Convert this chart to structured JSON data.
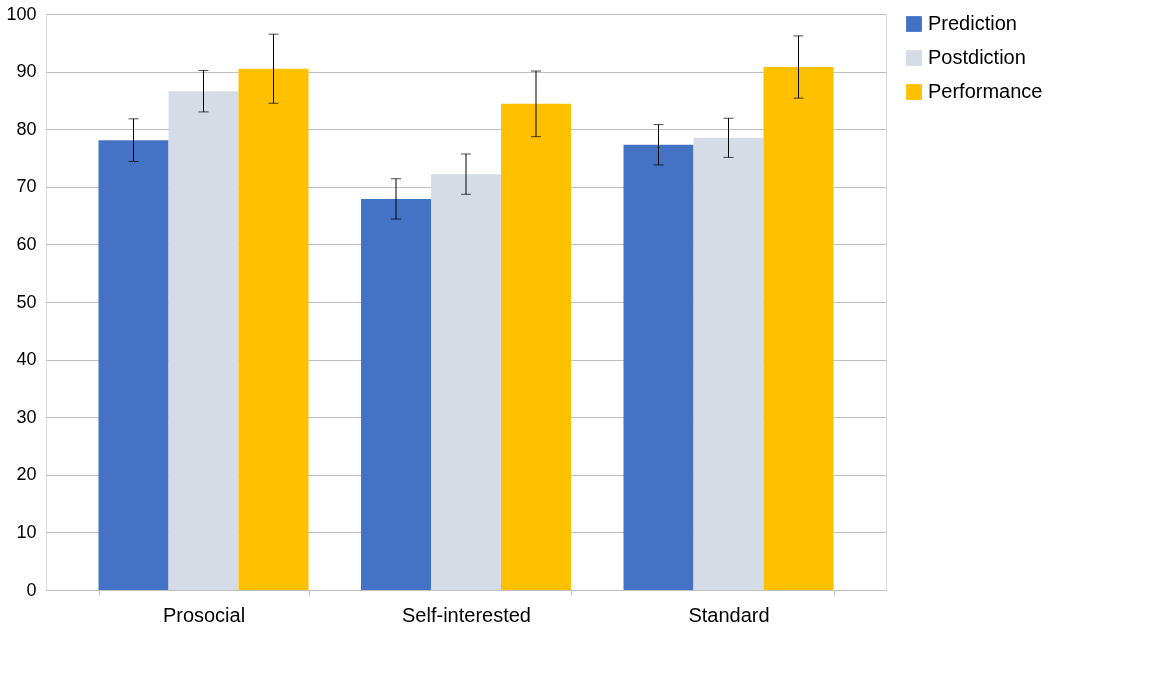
{
  "chart_data": {
    "type": "bar",
    "categories": [
      "Prosocial",
      "Self-interested",
      "Standard"
    ],
    "series": [
      {
        "name": "Prediction",
        "color": "#4472c4",
        "values": [
          78.1,
          67.9,
          77.3
        ],
        "errors": [
          3.7,
          3.5,
          3.5
        ]
      },
      {
        "name": "Postdiction",
        "color": "#d6dce5",
        "values": [
          86.6,
          72.2,
          78.5
        ],
        "errors": [
          3.6,
          3.5,
          3.4
        ]
      },
      {
        "name": "Performance",
        "color": "#ffc000",
        "values": [
          90.5,
          84.4,
          90.8
        ],
        "errors": [
          6.0,
          5.7,
          5.4
        ]
      }
    ],
    "ylim": [
      0,
      100
    ],
    "yticks": [
      0,
      10,
      20,
      30,
      40,
      50,
      60,
      70,
      80,
      90,
      100
    ],
    "grid": "y",
    "legend": "right"
  }
}
